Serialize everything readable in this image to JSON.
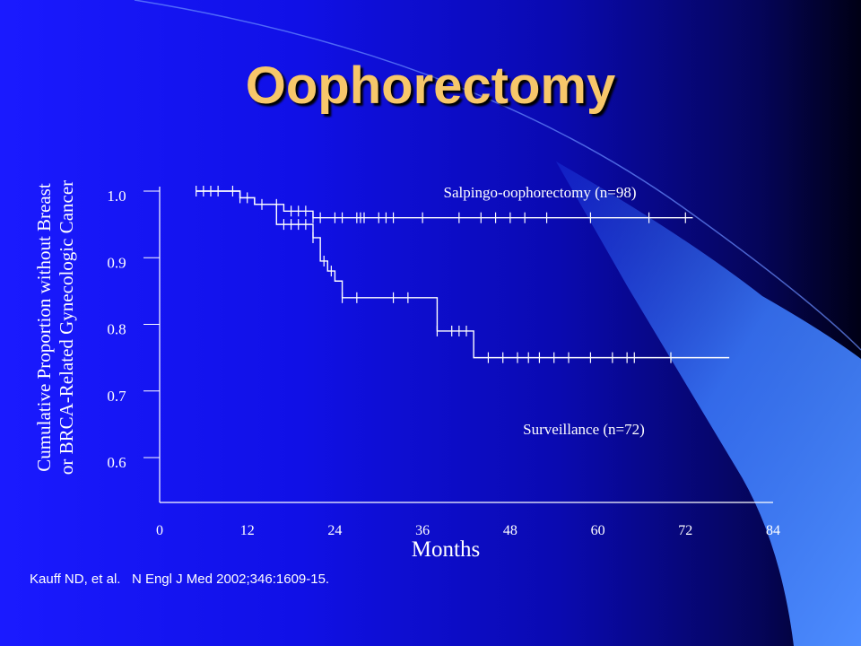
{
  "slide": {
    "title": "Oophorectomy",
    "citation": "Kauff ND, et al.   N Engl J Med 2002;346:1609-15.",
    "y_axis_label_lines": [
      "Cumulative Proportion without Breast",
      "or BRCA-Related Gynecologic Cancer"
    ],
    "x_axis_label": "Months"
  },
  "chart_data": {
    "type": "line",
    "title": "",
    "xlabel": "Months",
    "ylabel": "Cumulative Proportion without Breast or BRCA-Related Gynecologic Cancer",
    "xlim": [
      0,
      84
    ],
    "ylim": [
      0.55,
      1.0
    ],
    "x_ticks": [
      0,
      12,
      24,
      36,
      48,
      60,
      72,
      84
    ],
    "y_ticks": [
      0.6,
      0.7,
      0.8,
      0.9,
      1.0
    ],
    "y_tick_labels": [
      "0.6",
      "0.7",
      "0.8",
      "0.9",
      "1.0"
    ],
    "grid": false,
    "legend": "none",
    "colors": {
      "line": "#ffffff",
      "title": "#f7c76a",
      "text": "#ffffff"
    },
    "series": [
      {
        "name": "Salpingo-oophorectomy (n=98)",
        "label_position": "above line, top-right",
        "steps": [
          [
            5,
            1.0
          ],
          [
            11,
            0.99
          ],
          [
            13,
            0.98
          ],
          [
            17,
            0.97
          ],
          [
            21,
            0.96
          ],
          [
            73,
            0.96
          ]
        ],
        "censored": [
          5,
          6,
          7,
          8,
          10,
          11,
          12,
          14,
          16,
          18,
          19,
          20,
          21,
          22,
          24,
          25,
          27,
          27.5,
          28,
          30,
          31,
          32,
          36,
          41,
          44,
          46,
          48,
          50,
          53,
          59,
          67,
          72
        ]
      },
      {
        "name": "Surveillance (n=72)",
        "label_position": "below line, right",
        "steps": [
          [
            5,
            1.0
          ],
          [
            11,
            0.99
          ],
          [
            13,
            0.98
          ],
          [
            16,
            0.95
          ],
          [
            21,
            0.93
          ],
          [
            22,
            0.895
          ],
          [
            23,
            0.88
          ],
          [
            24,
            0.865
          ],
          [
            25,
            0.84
          ],
          [
            38,
            0.79
          ],
          [
            43,
            0.75
          ],
          [
            78,
            0.75
          ]
        ],
        "censored": [
          17,
          18,
          19,
          20,
          21,
          22.5,
          23.5,
          25,
          27,
          32,
          34,
          38,
          40,
          41,
          42,
          45,
          47,
          49,
          50.5,
          52,
          54,
          56,
          59,
          62,
          64,
          65,
          70
        ]
      }
    ],
    "x_tick_labels": [
      "0",
      "12",
      "24",
      "36",
      "48",
      "60",
      "72",
      "84"
    ]
  }
}
